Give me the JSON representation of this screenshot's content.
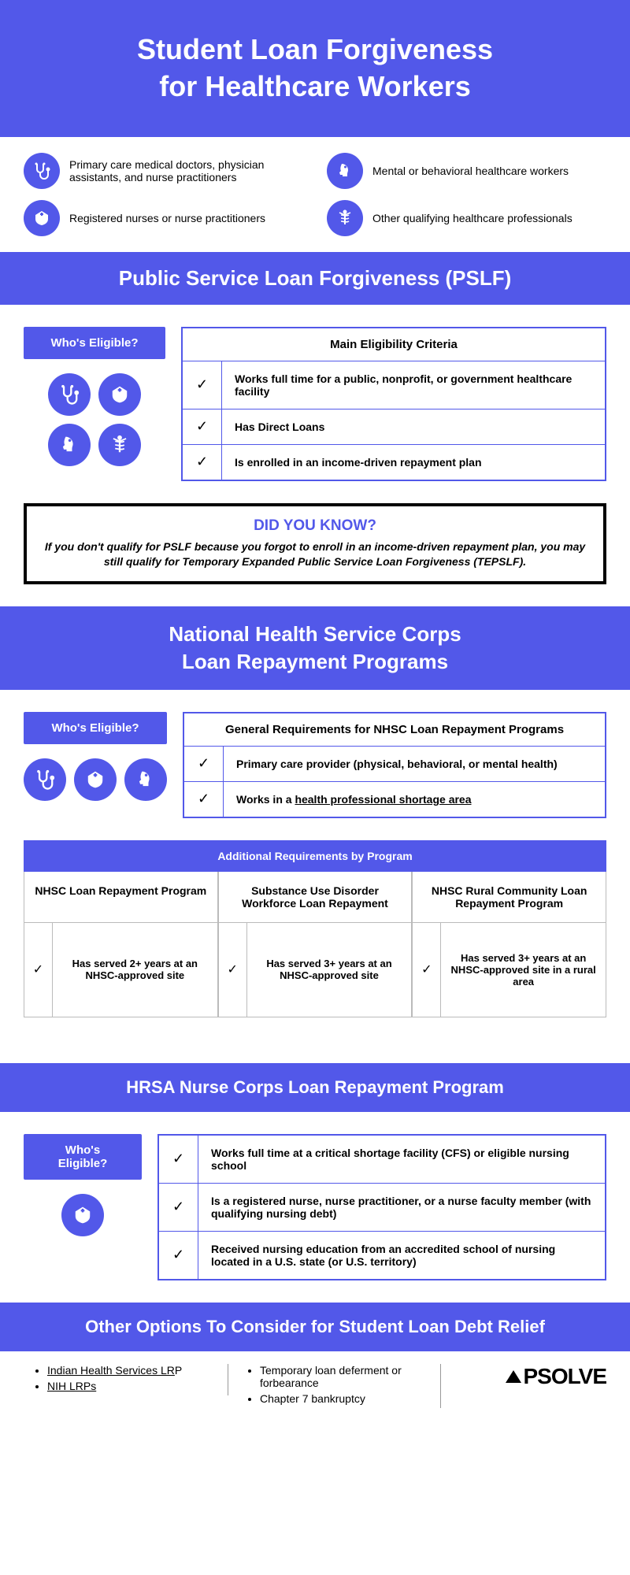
{
  "colors": {
    "primary": "#5258e9",
    "white": "#ffffff",
    "black": "#000000",
    "border_gray": "#bbbbbb"
  },
  "header": {
    "title_line1": "Student Loan Forgiveness",
    "title_line2": "for Healthcare Workers"
  },
  "categories": [
    {
      "icon": "stethoscope",
      "label": "Primary care medical doctors, physician assistants, and nurse practitioners"
    },
    {
      "icon": "mental",
      "label": "Mental or behavioral healthcare workers"
    },
    {
      "icon": "nurse",
      "label": "Registered nurses or nurse practitioners"
    },
    {
      "icon": "caduceus",
      "label": "Other qualifying healthcare professionals"
    }
  ],
  "pslf": {
    "title": "Public Service Loan Forgiveness (PSLF)",
    "who_label": "Who's Eligible?",
    "icons": [
      "stethoscope",
      "nurse",
      "mental",
      "caduceus"
    ],
    "criteria_header": "Main Eligibility Criteria",
    "criteria": [
      "Works full time for a public, nonprofit, or government healthcare facility",
      "Has Direct Loans",
      "Is enrolled in an income-driven repayment plan"
    ]
  },
  "dyk": {
    "title": "DID YOU KNOW?",
    "text": "If you don't qualify for PSLF because you forgot to enroll in an income-driven repayment plan, you may still qualify for Temporary Expanded Public Service Loan Forgiveness (TEPSLF)."
  },
  "nhsc": {
    "title_line1": "National Health Service Corps",
    "title_line2": "Loan Repayment Programs",
    "who_label": "Who's Eligible?",
    "icons": [
      "stethoscope",
      "nurse",
      "mental"
    ],
    "general_header": "General Requirements for NHSC Loan Repayment Programs",
    "general": [
      {
        "text": "Primary care provider (physical, behavioral, or mental health)"
      },
      {
        "text_parts": [
          "Works in a ",
          "health professional shortage area"
        ],
        "underline_idx": 1
      }
    ],
    "additional_header": "Additional Requirements by Program",
    "programs": [
      {
        "name": "NHSC Loan Repayment Program",
        "req": "Has served 2+ years at an NHSC-approved site"
      },
      {
        "name": "Substance Use Disorder Workforce Loan Repayment",
        "req": "Has served 3+ years at an NHSC-approved site"
      },
      {
        "name": "NHSC Rural Community Loan Repayment Program",
        "req": "Has served 3+ years at an NHSC-approved site in a rural area"
      }
    ]
  },
  "hrsa": {
    "title": "HRSA Nurse Corps Loan Repayment Program",
    "who_label": "Who's Eligible?",
    "icons": [
      "nurse"
    ],
    "criteria": [
      "Works full time at a critical shortage facility (CFS) or eligible nursing school",
      "Is a registered nurse, nurse practitioner, or a nurse faculty member (with qualifying nursing debt)",
      "Received nursing education from an accredited school of nursing located in a U.S. state (or U.S. territory)"
    ]
  },
  "other": {
    "title": "Other Options To Consider for Student Loan Debt Relief",
    "col1": [
      {
        "text": "Indian Health Services LRP",
        "underline": true,
        "trail": "P"
      },
      {
        "text": "NIH LRPs",
        "underline": true
      }
    ],
    "col2": [
      {
        "text": "Temporary loan deferment or forbearance"
      },
      {
        "text": "Chapter 7 bankruptcy"
      }
    ],
    "logo_text": "PSOLVE"
  },
  "check": "✓"
}
